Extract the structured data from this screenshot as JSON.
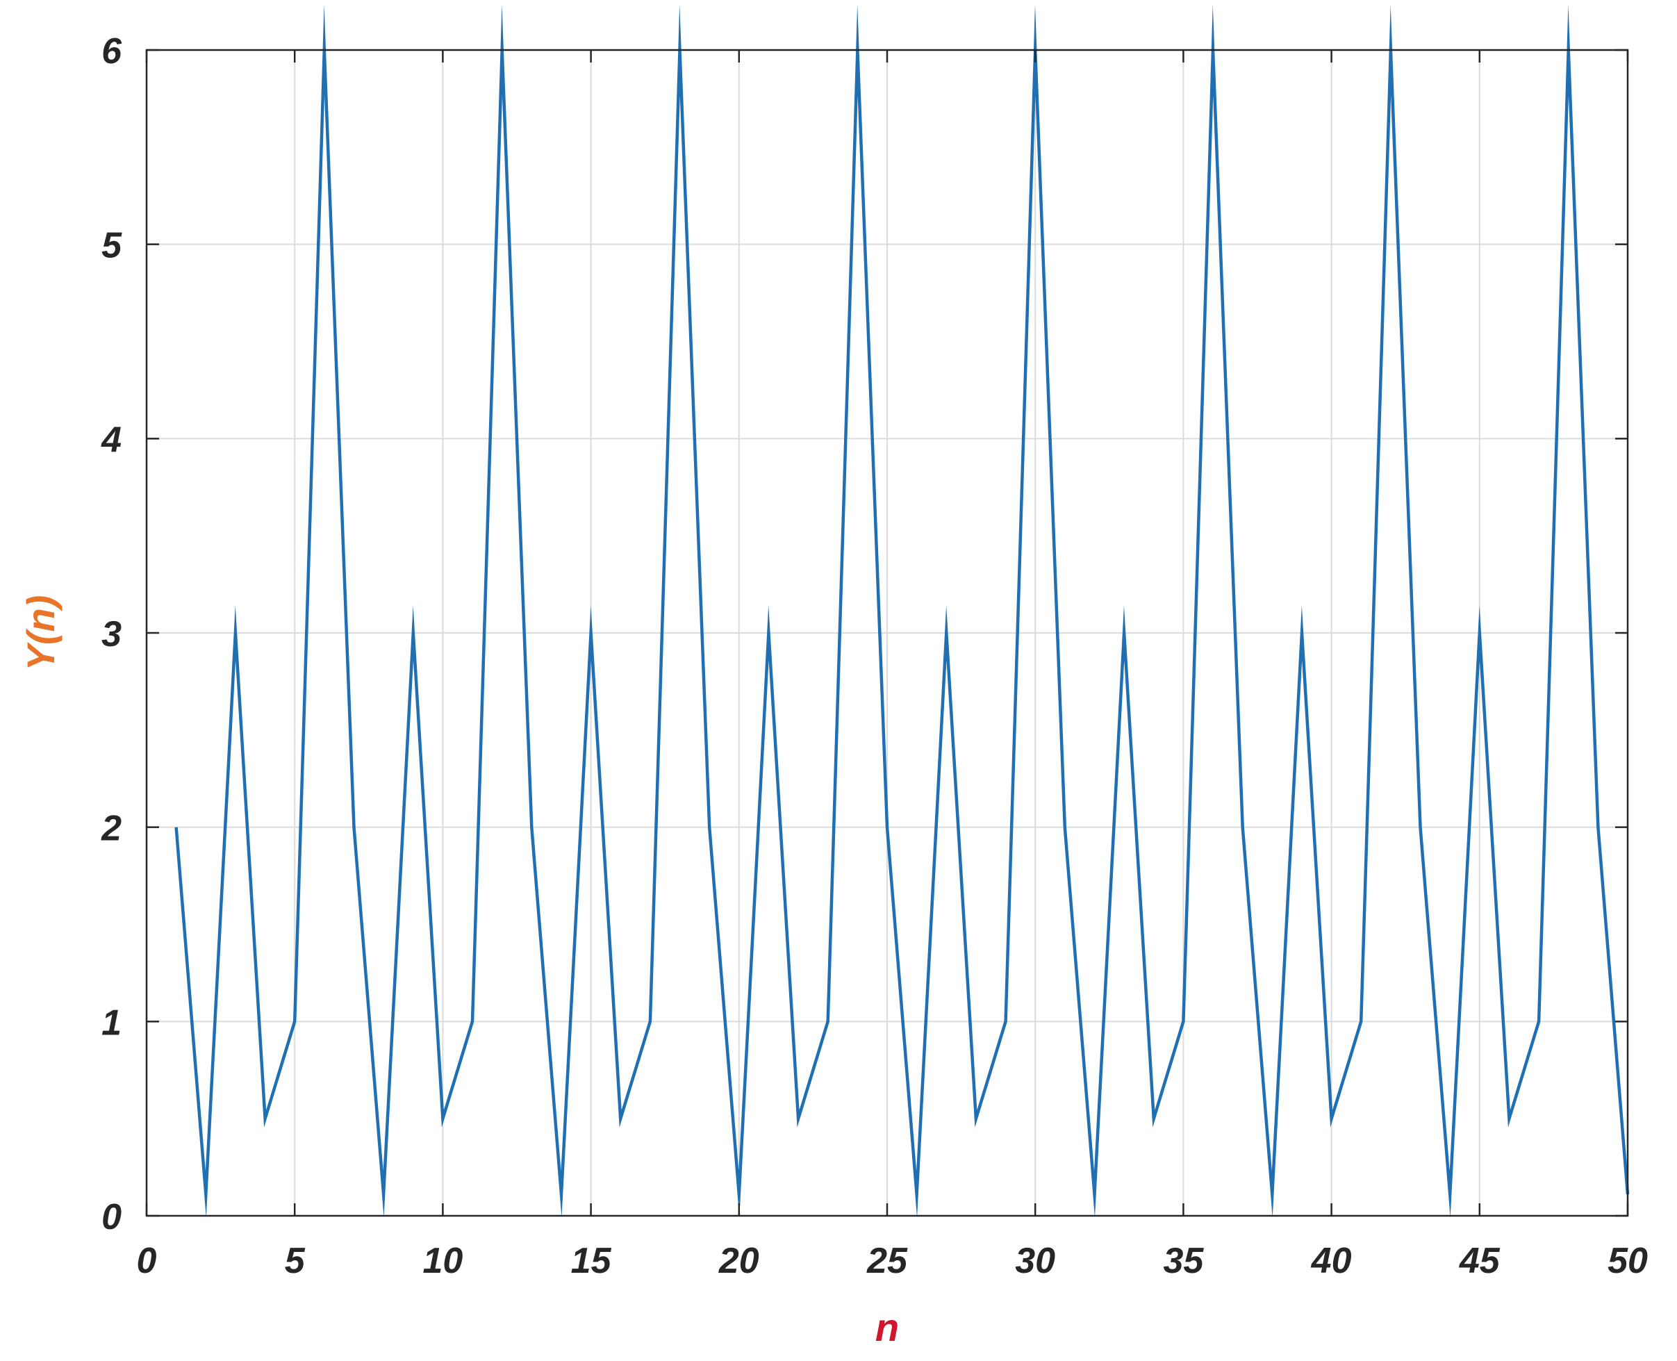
{
  "chart_data": {
    "type": "line",
    "title": "",
    "xlabel": "n",
    "ylabel": "Y(n)",
    "xlabel_color": "#d0162d",
    "ylabel_color": "#e8742a",
    "line_color": "#1f6fb2",
    "grid": true,
    "xlim": [
      0,
      50
    ],
    "ylim": [
      0,
      6
    ],
    "xticks": [
      0,
      5,
      10,
      15,
      20,
      25,
      30,
      35,
      40,
      45,
      50
    ],
    "yticks": [
      0,
      1,
      2,
      3,
      4,
      5,
      6
    ],
    "xtick_labels": [
      "0",
      "5",
      "10",
      "15",
      "20",
      "25",
      "30",
      "35",
      "40",
      "45",
      "50"
    ],
    "ytick_labels": [
      "0",
      "1",
      "2",
      "3",
      "4",
      "5",
      "6"
    ],
    "series": [
      {
        "x": [
          1,
          2,
          3,
          4,
          5,
          6,
          7,
          8,
          9,
          10,
          11,
          12,
          13,
          14,
          15,
          16,
          17,
          18,
          19,
          20,
          21,
          22,
          23,
          24,
          25,
          26,
          27,
          28,
          29,
          30,
          31,
          32,
          33,
          34,
          35,
          36,
          37,
          38,
          39,
          40,
          41,
          42,
          43,
          44,
          45,
          46,
          47,
          48,
          49,
          50
        ],
        "y": [
          2,
          0.111,
          3,
          0.5,
          1,
          6,
          2,
          0.111,
          3,
          0.5,
          1,
          6,
          2,
          0.111,
          3,
          0.5,
          1,
          6,
          2,
          0.111,
          3,
          0.5,
          1,
          6,
          2,
          0.111,
          3,
          0.5,
          1,
          6,
          2,
          0.111,
          3,
          0.5,
          1,
          6,
          2,
          0.111,
          3,
          0.5,
          1,
          6,
          2,
          0.111,
          3,
          0.5,
          1,
          6,
          2,
          0.111
        ]
      }
    ]
  }
}
